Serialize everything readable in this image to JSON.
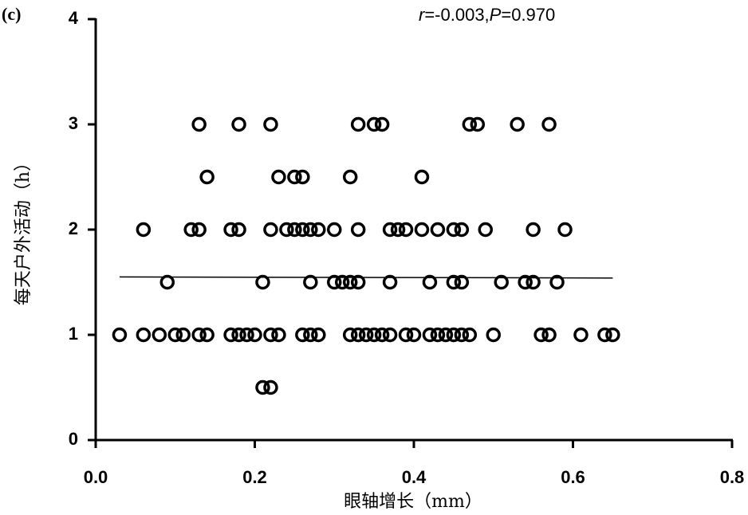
{
  "chart_data": {
    "type": "scatter",
    "panel_label": "(c)",
    "annotation_parts": [
      "r",
      "=-0.003,",
      "P",
      "=0.970"
    ],
    "xlabel": "眼轴增长（mm）",
    "ylabel": "每天户外活动（h）",
    "x": [
      0.13,
      0.18,
      0.22,
      0.33,
      0.35,
      0.36,
      0.47,
      0.48,
      0.53,
      0.57,
      0.14,
      0.23,
      0.25,
      0.26,
      0.32,
      0.41,
      0.06,
      0.12,
      0.13,
      0.17,
      0.18,
      0.22,
      0.24,
      0.25,
      0.26,
      0.27,
      0.28,
      0.3,
      0.33,
      0.37,
      0.38,
      0.39,
      0.41,
      0.43,
      0.45,
      0.46,
      0.49,
      0.55,
      0.59,
      0.09,
      0.21,
      0.27,
      0.3,
      0.31,
      0.32,
      0.33,
      0.37,
      0.42,
      0.45,
      0.46,
      0.51,
      0.54,
      0.55,
      0.58,
      0.03,
      0.06,
      0.08,
      0.1,
      0.11,
      0.13,
      0.14,
      0.17,
      0.18,
      0.19,
      0.2,
      0.22,
      0.23,
      0.26,
      0.27,
      0.28,
      0.32,
      0.33,
      0.34,
      0.35,
      0.36,
      0.37,
      0.39,
      0.4,
      0.42,
      0.43,
      0.44,
      0.45,
      0.46,
      0.47,
      0.5,
      0.56,
      0.57,
      0.61,
      0.64,
      0.65,
      0.21,
      0.22
    ],
    "y": [
      3,
      3,
      3,
      3,
      3,
      3,
      3,
      3,
      3,
      3,
      2.5,
      2.5,
      2.5,
      2.5,
      2.5,
      2.5,
      2,
      2,
      2,
      2,
      2,
      2,
      2,
      2,
      2,
      2,
      2,
      2,
      2,
      2,
      2,
      2,
      2,
      2,
      2,
      2,
      2,
      2,
      2,
      1.5,
      1.5,
      1.5,
      1.5,
      1.5,
      1.5,
      1.5,
      1.5,
      1.5,
      1.5,
      1.5,
      1.5,
      1.5,
      1.5,
      1.5,
      1,
      1,
      1,
      1,
      1,
      1,
      1,
      1,
      1,
      1,
      1,
      1,
      1,
      1,
      1,
      1,
      1,
      1,
      1,
      1,
      1,
      1,
      1,
      1,
      1,
      1,
      1,
      1,
      1,
      1,
      1,
      1,
      1,
      1,
      1,
      1,
      0.5,
      0.5
    ],
    "fit": {
      "x": [
        0.03,
        0.65
      ],
      "y": [
        1.55,
        1.54
      ]
    },
    "color": "#000000",
    "xlim": [
      0,
      0.8
    ],
    "ylim": [
      0,
      4
    ],
    "xticks": [
      {
        "value": 0,
        "label": "0.0"
      },
      0.2,
      0.4,
      0.6,
      0.8
    ],
    "yticks": [
      0,
      1,
      2,
      3,
      4
    ]
  }
}
